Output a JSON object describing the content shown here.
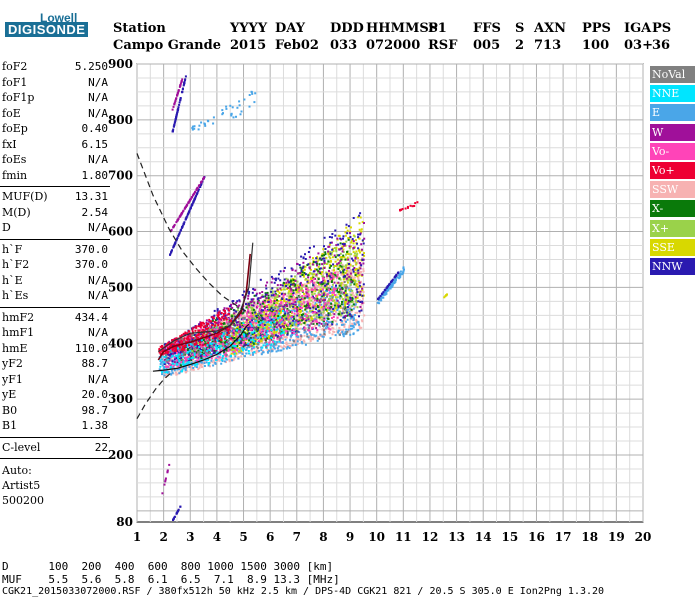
{
  "logo": {
    "top": "Lowell",
    "main": "DIGISONDE"
  },
  "header": {
    "row1": [
      "Station",
      "YYYY",
      "DAY",
      "DDD",
      "HHMMSS",
      "P1",
      "FFS",
      "S",
      "AXN",
      "PPS",
      "IGA",
      "PS"
    ],
    "row2": [
      "Campo Grande",
      "2015",
      "Feb02",
      "033",
      "072000",
      "RSF",
      "005",
      "2",
      "713",
      "100",
      "03+",
      "36"
    ]
  },
  "params": {
    "group1": [
      {
        "k": "foF2",
        "v": "5.250"
      },
      {
        "k": "foF1",
        "v": "N/A"
      },
      {
        "k": "foF1p",
        "v": "N/A"
      },
      {
        "k": "foE",
        "v": "N/A"
      },
      {
        "k": "foEp",
        "v": "0.40"
      },
      {
        "k": "fxI",
        "v": "6.15"
      },
      {
        "k": "foEs",
        "v": "N/A"
      },
      {
        "k": "fmin",
        "v": "1.80"
      }
    ],
    "group2": [
      {
        "k": "MUF(D)",
        "v": "13.31"
      },
      {
        "k": "M(D)",
        "v": "2.54"
      },
      {
        "k": "D",
        "v": "N/A"
      }
    ],
    "group3": [
      {
        "k": "h`F",
        "v": "370.0"
      },
      {
        "k": "h`F2",
        "v": "370.0"
      },
      {
        "k": "h`E",
        "v": "N/A"
      },
      {
        "k": "h`Es",
        "v": "N/A"
      }
    ],
    "group4": [
      {
        "k": "hmF2",
        "v": "434.4"
      },
      {
        "k": "hmF1",
        "v": "N/A"
      },
      {
        "k": "hmE",
        "v": "110.0"
      },
      {
        "k": "yF2",
        "v": "88.7"
      },
      {
        "k": "yF1",
        "v": "N/A"
      },
      {
        "k": "yE",
        "v": "20.0"
      },
      {
        "k": "B0",
        "v": "98.7"
      },
      {
        "k": "B1",
        "v": "1.38"
      }
    ],
    "clevel": {
      "k": "C-level",
      "v": "22"
    },
    "auto": [
      "Auto:",
      "Artist5",
      "500200"
    ]
  },
  "legend": [
    {
      "label": "NoVal",
      "color": "#808080"
    },
    {
      "label": "NNE",
      "color": "#00e5ff"
    },
    {
      "label": "E",
      "color": "#4aa6e8"
    },
    {
      "label": "W",
      "color": "#a0109a"
    },
    {
      "label": "Vo-",
      "color": "#ff44b8"
    },
    {
      "label": "Vo+",
      "color": "#ee0033"
    },
    {
      "label": "SSW",
      "color": "#f7b2b2"
    },
    {
      "label": "X-",
      "color": "#0a7a0a"
    },
    {
      "label": "X+",
      "color": "#9ad24a"
    },
    {
      "label": "SSE",
      "color": "#d8d800"
    },
    {
      "label": "NNW",
      "color": "#2a1ab0"
    }
  ],
  "bottom": {
    "d_row": "D      100  200  400  600  800 1000 1500 3000 [km]",
    "muf_row": "MUF    5.5  5.6  5.8  6.1  6.5  7.1  8.9 13.3 [MHz]",
    "footer": "CGK21_2015033072000.RSF / 380fx512h 50 kHz 2.5 km / DPS-4D CGK21 821 / 20.5 S 305.0 E Ion2Png 1.3.20"
  },
  "chart_data": {
    "type": "scatter",
    "xlim": [
      1,
      20
    ],
    "ylim": [
      80,
      900
    ],
    "x_ticks": [
      1,
      2,
      3,
      4,
      5,
      6,
      7,
      8,
      9,
      10,
      11,
      12,
      13,
      14,
      15,
      16,
      17,
      18,
      19,
      20
    ],
    "y_ticks": [
      80,
      100,
      200,
      300,
      400,
      500,
      600,
      700,
      800,
      900
    ],
    "y_tick_labels": [
      "80",
      "",
      "200",
      "300",
      "400",
      "500",
      "600",
      "700",
      "800",
      "900"
    ],
    "grid": true,
    "legend_placement": "right",
    "trace_o": [
      [
        1.8,
        370
      ],
      [
        2.0,
        385
      ],
      [
        2.4,
        395
      ],
      [
        3.0,
        402
      ],
      [
        3.5,
        410
      ],
      [
        4.0,
        418
      ],
      [
        4.5,
        432
      ],
      [
        4.9,
        455
      ],
      [
        5.1,
        490
      ],
      [
        5.25,
        560
      ]
    ],
    "trace_x": [
      [
        1.8,
        385
      ],
      [
        2.4,
        405
      ],
      [
        3.0,
        418
      ],
      [
        3.5,
        420
      ],
      [
        4.0,
        422
      ],
      [
        4.5,
        432
      ],
      [
        4.9,
        460
      ],
      [
        5.2,
        500
      ],
      [
        5.35,
        580
      ]
    ],
    "profile_solid": [
      [
        1.6,
        350
      ],
      [
        2.0,
        352
      ],
      [
        2.5,
        355
      ],
      [
        3.0,
        362
      ],
      [
        3.5,
        370
      ],
      [
        4.0,
        380
      ],
      [
        4.5,
        395
      ],
      [
        4.9,
        415
      ],
      [
        5.1,
        430
      ],
      [
        5.2,
        434
      ]
    ],
    "profile_dashed_lower": [
      [
        1.0,
        265
      ],
      [
        1.3,
        290
      ],
      [
        1.7,
        318
      ],
      [
        2.0,
        335
      ],
      [
        2.3,
        348
      ]
    ],
    "profile_dashed_upper": [
      [
        1.0,
        740
      ],
      [
        1.6,
        665
      ],
      [
        2.2,
        605
      ],
      [
        2.7,
        565
      ],
      [
        3.2,
        535
      ],
      [
        3.7,
        508
      ],
      [
        4.2,
        485
      ],
      [
        4.6,
        472
      ],
      [
        5.0,
        460
      ],
      [
        5.2,
        455
      ]
    ],
    "clusters": [
      {
        "color": "#f7b2b2",
        "xr": [
          2.0,
          9.5
        ],
        "yr_low": [
          340,
          400
        ],
        "yr_high": [
          430,
          560
        ],
        "count": 1300
      },
      {
        "color": "#4aa6e8",
        "xr": [
          1.8,
          9.3
        ],
        "yr_low": [
          340,
          395
        ],
        "yr_high": [
          420,
          520
        ],
        "count": 800
      },
      {
        "color": "#d8d800",
        "xr": [
          4.5,
          9.5
        ],
        "yr_low": [
          380,
          420
        ],
        "yr_high": [
          480,
          640
        ],
        "count": 650
      },
      {
        "color": "#9ad24a",
        "xr": [
          3.0,
          9.3
        ],
        "yr_low": [
          370,
          410
        ],
        "yr_high": [
          460,
          600
        ],
        "count": 500
      },
      {
        "color": "#0a7a0a",
        "xr": [
          2.5,
          9.2
        ],
        "yr_low": [
          360,
          405
        ],
        "yr_high": [
          450,
          600
        ],
        "count": 400
      },
      {
        "color": "#a0109a",
        "xr": [
          2.0,
          9.5
        ],
        "yr_low": [
          360,
          400
        ],
        "yr_high": [
          450,
          620
        ],
        "count": 420
      },
      {
        "color": "#2a1ab0",
        "xr": [
          2.0,
          9.5
        ],
        "yr_low": [
          360,
          400
        ],
        "yr_high": [
          450,
          640
        ],
        "count": 420
      },
      {
        "color": "#ff44b8",
        "xr": [
          2.0,
          8.5
        ],
        "yr_low": [
          350,
          400
        ],
        "yr_high": [
          430,
          540
        ],
        "count": 380
      },
      {
        "color": "#00e5ff",
        "xr": [
          1.8,
          6.5
        ],
        "yr_low": [
          340,
          380
        ],
        "yr_high": [
          400,
          470
        ],
        "count": 200
      },
      {
        "color": "#ee0033",
        "xr": [
          1.8,
          4.5
        ],
        "yr_low": [
          380,
          395
        ],
        "yr_high": [
          410,
          470
        ],
        "count": 260
      },
      {
        "color": "#808080",
        "xr": [
          2.0,
          9.0
        ],
        "yr_low": [
          360,
          400
        ],
        "yr_high": [
          420,
          520
        ],
        "count": 120
      },
      {
        "color": "#4aa6e8",
        "xr": [
          10.0,
          11.0
        ],
        "yr_low": [
          470,
          480
        ],
        "yr_high": [
          530,
          540
        ],
        "count": 90
      },
      {
        "color": "#2a1ab0",
        "xr": [
          10.0,
          10.8
        ],
        "yr_low": [
          480,
          480
        ],
        "yr_high": [
          530,
          530
        ],
        "count": 40
      },
      {
        "color": "#ee0033",
        "xr": [
          10.8,
          11.6
        ],
        "yr_low": [
          638,
          640
        ],
        "yr_high": [
          650,
          660
        ],
        "count": 14
      },
      {
        "color": "#d8d800",
        "xr": [
          12.5,
          12.7
        ],
        "yr_low": [
          484,
          484
        ],
        "yr_high": [
          494,
          494
        ],
        "count": 6
      },
      {
        "color": "#4aa6e8",
        "xr": [
          3.0,
          5.5
        ],
        "yr_low": [
          780,
          790
        ],
        "yr_high": [
          820,
          860
        ],
        "count": 40
      },
      {
        "color": "#2a1ab0",
        "xr": [
          2.3,
          2.8
        ],
        "yr_low": [
          780,
          780
        ],
        "yr_high": [
          880,
          880
        ],
        "count": 60
      },
      {
        "color": "#a0109a",
        "xr": [
          2.3,
          2.7
        ],
        "yr_low": [
          820,
          820
        ],
        "yr_high": [
          880,
          880
        ],
        "count": 30
      },
      {
        "color": "#2a1ab0",
        "xr": [
          2.3,
          2.6
        ],
        "yr_low": [
          84,
          84
        ],
        "yr_high": [
          110,
          110
        ],
        "count": 18
      },
      {
        "color": "#a0109a",
        "xr": [
          1.9,
          2.2
        ],
        "yr_low": [
          130,
          130
        ],
        "yr_high": [
          190,
          190
        ],
        "count": 10
      },
      {
        "color": "#2a1ab0",
        "xr": [
          2.2,
          3.5
        ],
        "yr_low": [
          560,
          560
        ],
        "yr_high": [
          700,
          700
        ],
        "count": 100
      },
      {
        "color": "#a0109a",
        "xr": [
          2.2,
          3.5
        ],
        "yr_low": [
          600,
          600
        ],
        "yr_high": [
          700,
          700
        ],
        "count": 80
      }
    ]
  }
}
